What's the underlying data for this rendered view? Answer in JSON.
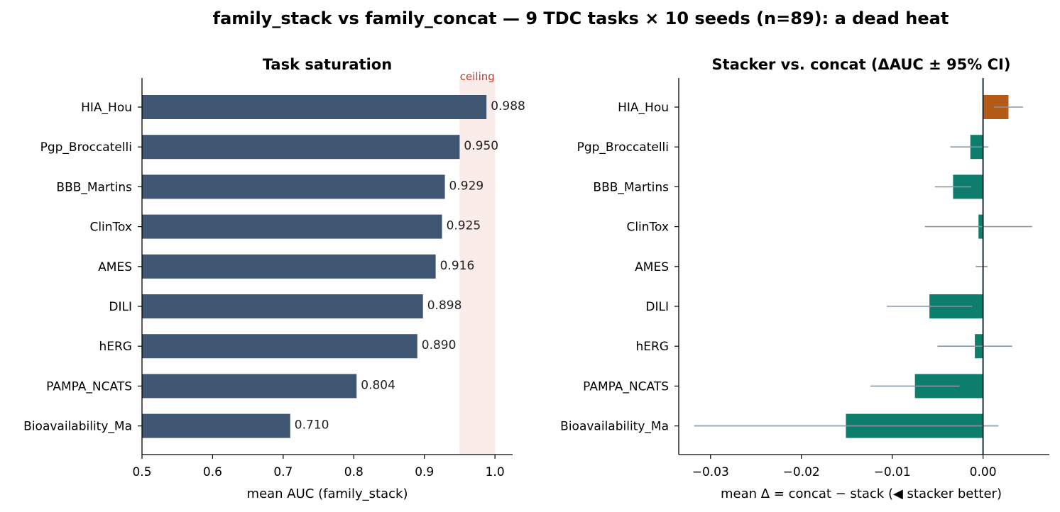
{
  "suptitle": "family_stack vs family_concat — 9 TDC tasks × 10 seeds (n=89): a dead heat",
  "colors": {
    "bar_left": "#3f5672",
    "ceiling_band": "#f9ece9",
    "ceiling_text": "#c0392b",
    "stacker_better": "#0e7e6c",
    "concat_better": "#b35a16",
    "ci_line": "#8796a5",
    "axis": "#000000"
  },
  "chart_data": [
    {
      "type": "bar",
      "orientation": "horizontal",
      "title": "Task saturation",
      "xlabel": "mean AUC (family_stack)",
      "ylabel": "",
      "xlim": [
        0.5,
        1.025
      ],
      "xticks": [
        "0.5",
        "0.6",
        "0.7",
        "0.8",
        "0.9",
        "1.0"
      ],
      "categories": [
        "HIA_Hou",
        "Pgp_Broccatelli",
        "BBB_Martins",
        "ClinTox",
        "AMES",
        "DILI",
        "hERG",
        "PAMPA_NCATS",
        "Bioavailability_Ma"
      ],
      "values": [
        0.988,
        0.95,
        0.929,
        0.925,
        0.916,
        0.898,
        0.89,
        0.804,
        0.71
      ],
      "labels": [
        "0.988",
        "0.950",
        "0.929",
        "0.925",
        "0.916",
        "0.898",
        "0.890",
        "0.804",
        "0.710"
      ],
      "ceiling": {
        "label": "ceiling",
        "range": [
          0.95,
          1.0
        ]
      },
      "grid": false
    },
    {
      "type": "bar",
      "orientation": "horizontal",
      "title": "Stacker vs. concat (ΔAUC ± 95% CI)",
      "xlabel": "mean Δ = concat − stack  (◀ stacker better)",
      "ylabel": "",
      "xlim": [
        -0.0335,
        0.0073
      ],
      "xticks": [
        "−0.03",
        "−0.02",
        "−0.01",
        "0.00"
      ],
      "categories": [
        "HIA_Hou",
        "Pgp_Broccatelli",
        "BBB_Martins",
        "ClinTox",
        "AMES",
        "DILI",
        "hERG",
        "PAMPA_NCATS",
        "Bioavailability_Ma"
      ],
      "values": [
        0.0028,
        -0.0014,
        -0.0033,
        -0.0005,
        0.0,
        -0.0059,
        -0.0009,
        -0.0075,
        -0.0151
      ],
      "ci_low": [
        0.0012,
        -0.0036,
        -0.0053,
        -0.0064,
        -0.0008,
        -0.0106,
        -0.005,
        -0.0124,
        -0.0318
      ],
      "ci_high": [
        0.0044,
        0.0006,
        -0.0013,
        0.0054,
        0.0005,
        -0.0012,
        0.0032,
        -0.0026,
        0.0017
      ],
      "grid": false
    }
  ]
}
